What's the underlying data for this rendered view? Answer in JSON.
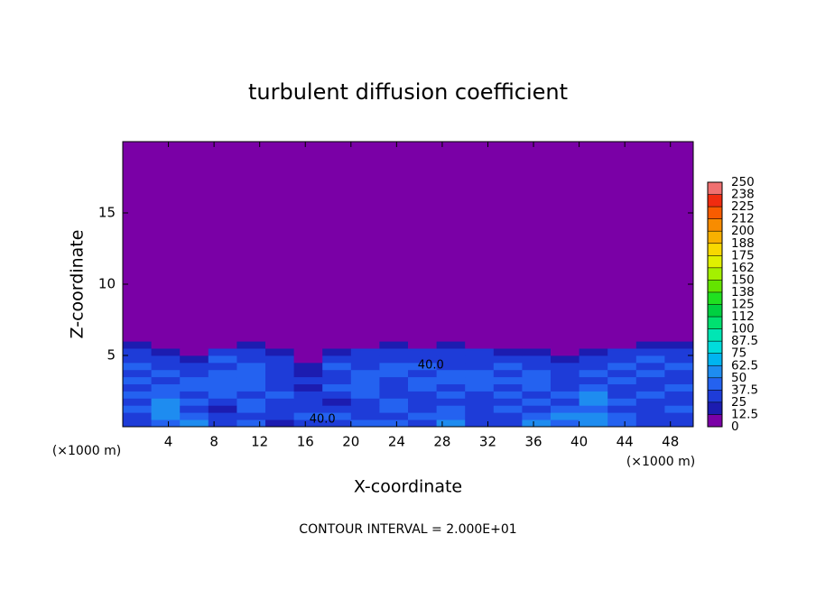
{
  "chart_data": {
    "type": "heatmap",
    "title": "turbulent diffusion coefficient",
    "xlabel": "X-coordinate",
    "ylabel": "Z-coordinate",
    "x_unit": "(×1000 m)",
    "footnote": "CONTOUR INTERVAL = 2.000E+01",
    "xlim": [
      0,
      50
    ],
    "ylim": [
      0,
      20
    ],
    "xticks": [
      4,
      8,
      12,
      16,
      20,
      24,
      28,
      32,
      36,
      40,
      44,
      48
    ],
    "yticks": [
      5,
      10,
      15
    ],
    "x_edges": [
      0,
      2.5,
      5,
      7.5,
      10,
      12.5,
      15,
      17.5,
      20,
      22.5,
      25,
      27.5,
      30,
      32.5,
      35,
      37.5,
      40,
      42.5,
      45,
      47.5,
      50
    ],
    "z_edges": [
      0,
      0.5,
      1,
      1.5,
      2,
      2.5,
      3,
      3.5,
      4,
      4.5,
      5,
      5.5,
      6,
      20
    ],
    "values": [
      [
        30,
        45,
        55,
        30,
        40,
        20,
        35,
        30,
        40,
        45,
        30,
        55,
        30,
        35,
        50,
        40,
        60,
        45,
        35,
        30
      ],
      [
        35,
        50,
        40,
        35,
        30,
        25,
        40,
        45,
        30,
        35,
        40,
        45,
        35,
        30,
        40,
        55,
        50,
        40,
        30,
        35
      ],
      [
        40,
        60,
        35,
        20,
        45,
        30,
        35,
        30,
        25,
        40,
        30,
        45,
        30,
        40,
        35,
        45,
        40,
        30,
        35,
        40
      ],
      [
        35,
        55,
        40,
        35,
        40,
        30,
        30,
        20,
        35,
        45,
        25,
        30,
        35,
        30,
        40,
        30,
        60,
        45,
        30,
        35
      ],
      [
        40,
        45,
        30,
        40,
        35,
        40,
        25,
        30,
        40,
        35,
        30,
        40,
        35,
        40,
        35,
        40,
        50,
        35,
        40,
        30
      ],
      [
        35,
        40,
        40,
        45,
        40,
        35,
        20,
        40,
        45,
        30,
        40,
        35,
        40,
        35,
        40,
        35,
        40,
        30,
        35,
        40
      ],
      [
        40,
        35,
        45,
        40,
        45,
        30,
        30,
        35,
        40,
        35,
        40,
        40,
        45,
        40,
        40,
        30,
        35,
        40,
        30,
        35
      ],
      [
        35,
        40,
        35,
        40,
        40,
        35,
        15,
        30,
        45,
        40,
        35,
        40,
        40,
        35,
        45,
        35,
        40,
        35,
        40,
        30
      ],
      [
        40,
        30,
        30,
        35,
        40,
        30,
        20,
        40,
        35,
        40,
        40,
        35,
        35,
        40,
        35,
        30,
        35,
        40,
        35,
        40
      ],
      [
        35,
        30,
        20,
        40,
        35,
        25,
        10,
        30,
        30,
        35,
        30,
        35,
        30,
        35,
        30,
        20,
        30,
        35,
        40,
        35
      ],
      [
        30,
        20,
        10,
        30,
        30,
        20,
        5,
        15,
        25,
        30,
        25,
        30,
        25,
        20,
        15,
        10,
        20,
        30,
        30,
        35
      ],
      [
        20,
        0,
        0,
        10,
        15,
        10,
        0,
        0,
        10,
        15,
        10,
        15,
        10,
        5,
        0,
        0,
        5,
        10,
        15,
        20
      ],
      [
        0,
        0,
        0,
        0,
        0,
        0,
        0,
        0,
        0,
        0,
        0,
        0,
        0,
        0,
        0,
        0,
        0,
        0,
        0,
        0
      ]
    ],
    "levels": [
      0,
      12.5,
      25,
      37.5,
      50,
      62.5,
      75,
      87.5,
      100,
      112,
      125,
      138,
      150,
      162,
      175,
      188,
      200,
      212,
      225,
      238,
      250
    ],
    "colors": [
      "#7a00a6",
      "#1c1cb0",
      "#1e3cd8",
      "#2462f0",
      "#1e8cf0",
      "#00b4f0",
      "#00dcdc",
      "#00e6b4",
      "#00e070",
      "#00d040",
      "#20e020",
      "#64e400",
      "#a4f000",
      "#e0f000",
      "#f8d800",
      "#f8b000",
      "#f88c00",
      "#f85c00",
      "#f02c10",
      "#f07070"
    ],
    "contour_labels": [
      {
        "text": "40.0",
        "x": 27,
        "z": 4.3
      },
      {
        "text": "40.0",
        "x": 17.5,
        "z": 0.5
      }
    ]
  }
}
